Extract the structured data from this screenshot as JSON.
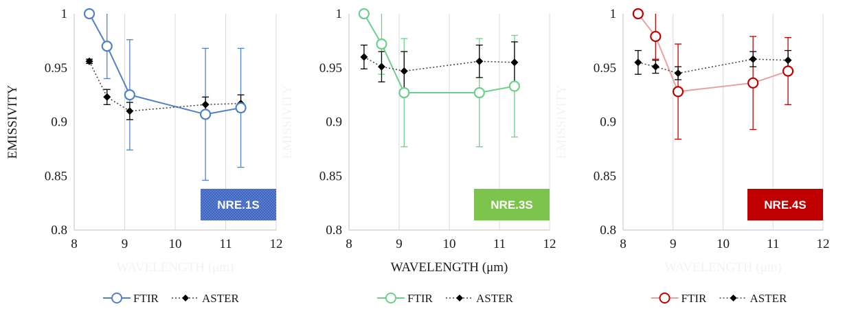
{
  "chart_data": [
    {
      "type": "line",
      "badge": "NRE.1S",
      "badge_color": "#4472c4",
      "badge_pattern": "dotted",
      "ftir_color": "#4f81c8",
      "ylabel": "EMISSIVITY",
      "ylabel_visible": true,
      "xlabel": "WAVELENGTH (μm)",
      "xlabel_visible": false,
      "xlim": [
        8,
        12
      ],
      "ylim": [
        0.8,
        1.0
      ],
      "x_ticks": [
        "8",
        "9",
        "10",
        "11",
        "12"
      ],
      "y_ticks": [
        "0.8",
        "0.85",
        "0.9",
        "0.95",
        "1"
      ],
      "grid": "vertical",
      "legend_position": "bottom",
      "series": [
        {
          "name": "FTIR",
          "x": [
            8.3,
            8.65,
            9.1,
            10.6,
            11.3
          ],
          "y": [
            1.0,
            0.97,
            0.925,
            0.907,
            0.913
          ],
          "err": [
            0,
            0.03,
            0.051,
            0.061,
            0.055
          ]
        },
        {
          "name": "ASTER",
          "x": [
            8.3,
            8.65,
            9.1,
            10.6,
            11.3
          ],
          "y": [
            0.956,
            0.923,
            0.91,
            0.916,
            0.917
          ],
          "err": [
            0.002,
            0.007,
            0.008,
            0.007,
            0.008
          ]
        }
      ]
    },
    {
      "type": "line",
      "badge": "NRE.3S",
      "badge_color": "#7dc44e",
      "badge_pattern": "solid",
      "ftir_color": "#6dcf8c",
      "ylabel": "EMISSIVITY",
      "ylabel_visible": false,
      "xlabel": "WAVELENGTH (μm)",
      "xlabel_visible": true,
      "xlim": [
        8,
        12
      ],
      "ylim": [
        0.8,
        1.0
      ],
      "x_ticks": [
        "8",
        "9",
        "10",
        "11",
        "12"
      ],
      "y_ticks": [
        "0.8",
        "0.85",
        "0.9",
        "0.95",
        "1"
      ],
      "grid": "vertical",
      "legend_position": "bottom",
      "series": [
        {
          "name": "FTIR",
          "x": [
            8.3,
            8.65,
            9.1,
            10.6,
            11.3
          ],
          "y": [
            1.0,
            0.972,
            0.927,
            0.927,
            0.933
          ],
          "err": [
            0,
            0.028,
            0.05,
            0.05,
            0.047
          ]
        },
        {
          "name": "ASTER",
          "x": [
            8.3,
            8.65,
            9.1,
            10.6,
            11.3
          ],
          "y": [
            0.96,
            0.951,
            0.947,
            0.956,
            0.955
          ],
          "err": [
            0.011,
            0.014,
            0.018,
            0.015,
            0.019
          ]
        }
      ]
    },
    {
      "type": "line",
      "badge": "NRE.4S",
      "badge_color": "#c00000",
      "badge_pattern": "solid",
      "ftir_color": "#c00000",
      "ftir_line_color": "#e8a1a1",
      "ylabel": "EMISSIVITY",
      "ylabel_visible": false,
      "xlabel": "WAVELENGTH (μm)",
      "xlabel_visible": false,
      "xlim": [
        8,
        12
      ],
      "ylim": [
        0.8,
        1.0
      ],
      "x_ticks": [
        "8",
        "9",
        "10",
        "11",
        "12"
      ],
      "y_ticks": [
        "0.8",
        "0.85",
        "0.9",
        "0.95",
        "1"
      ],
      "grid": "vertical",
      "legend_position": "bottom",
      "series": [
        {
          "name": "FTIR",
          "x": [
            8.3,
            8.65,
            9.1,
            10.6,
            11.3
          ],
          "y": [
            1.0,
            0.979,
            0.928,
            0.936,
            0.947
          ],
          "err": [
            0,
            0.021,
            0.044,
            0.043,
            0.031
          ]
        },
        {
          "name": "ASTER",
          "x": [
            8.3,
            8.65,
            9.1,
            10.6,
            11.3
          ],
          "y": [
            0.955,
            0.951,
            0.945,
            0.958,
            0.957
          ],
          "err": [
            0.011,
            0.006,
            0.006,
            0.007,
            0.009
          ]
        }
      ]
    }
  ]
}
